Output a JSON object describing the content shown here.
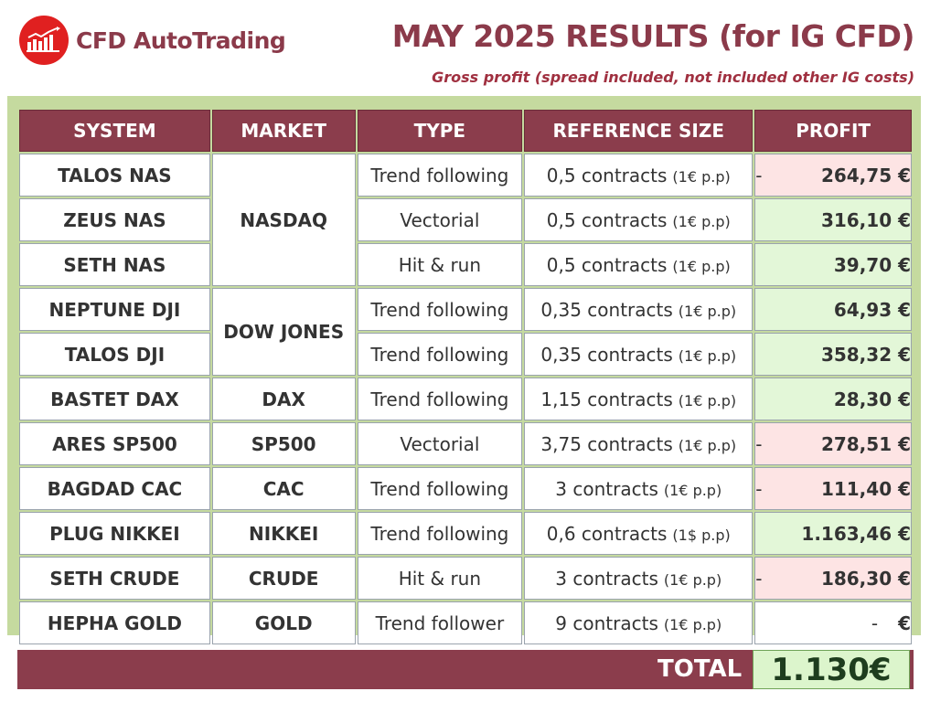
{
  "brand": {
    "name": "CFD AutoTrading",
    "logo_icon": "bar-chart-icon"
  },
  "header": {
    "title": "MAY 2025 RESULTS (for IG CFD)",
    "subtitle": "Gross profit (spread included, not included other IG costs)"
  },
  "colors": {
    "header_bg": "#8b3d4c",
    "panel_bg": "#c5da9f",
    "positive_bg": "#e3f7d8",
    "negative_bg": "#fde4e4",
    "accent_red": "#e02020"
  },
  "table": {
    "columns": [
      "SYSTEM",
      "MARKET",
      "TYPE",
      "REFERENCE SIZE",
      "PROFIT"
    ],
    "rows": [
      {
        "system": "TALOS NAS",
        "market": "NASDAQ",
        "type": "Trend following",
        "size": "0,5 contracts",
        "unit": "(1€ p.p)",
        "sign": "-",
        "profit": "264,75 €",
        "status": "neg"
      },
      {
        "system": "ZEUS NAS",
        "market": "",
        "type": "Vectorial",
        "size": "0,5 contracts",
        "unit": "(1€ p.p)",
        "sign": "",
        "profit": "316,10 €",
        "status": "pos"
      },
      {
        "system": "SETH NAS",
        "market": "",
        "type": "Hit & run",
        "size": "0,5 contracts",
        "unit": "(1€ p.p)",
        "sign": "",
        "profit": "39,70 €",
        "status": "pos"
      },
      {
        "system": "NEPTUNE DJI",
        "market": "DOW JONES",
        "type": "Trend following",
        "size": "0,35 contracts",
        "unit": "(1€ p.p)",
        "sign": "",
        "profit": "64,93 €",
        "status": "pos"
      },
      {
        "system": "TALOS DJI",
        "market": "",
        "type": "Trend following",
        "size": "0,35 contracts",
        "unit": "(1€ p.p)",
        "sign": "",
        "profit": "358,32 €",
        "status": "pos"
      },
      {
        "system": "BASTET DAX",
        "market": "DAX",
        "type": "Trend following",
        "size": "1,15 contracts",
        "unit": "(1€ p.p)",
        "sign": "",
        "profit": "28,30 €",
        "status": "pos"
      },
      {
        "system": "ARES SP500",
        "market": "SP500",
        "type": "Vectorial",
        "size": "3,75 contracts",
        "unit": "(1€ p.p)",
        "sign": "-",
        "profit": "278,51 €",
        "status": "neg"
      },
      {
        "system": "BAGDAD CAC",
        "market": "CAC",
        "type": "Trend following",
        "size": "3 contracts",
        "unit": "(1€ p.p)",
        "sign": "-",
        "profit": "111,40 €",
        "status": "neg"
      },
      {
        "system": "PLUG NIKKEI",
        "market": "NIKKEI",
        "type": "Trend following",
        "size": "0,6 contracts",
        "unit": "(1$ p.p)",
        "sign": "",
        "profit": "1.163,46 €",
        "status": "pos"
      },
      {
        "system": "SETH CRUDE",
        "market": "CRUDE",
        "type": "Hit & run",
        "size": "3 contracts",
        "unit": "(1€ p.p)",
        "sign": "-",
        "profit": "186,30 €",
        "status": "neg"
      },
      {
        "system": "HEPHA GOLD",
        "market": "GOLD",
        "type": "Trend follower",
        "size": "9 contracts",
        "unit": "(1€ p.p)",
        "sign": "-",
        "profit": "€",
        "status": "zero"
      }
    ]
  },
  "total": {
    "label": "TOTAL",
    "value": "1.130€"
  }
}
